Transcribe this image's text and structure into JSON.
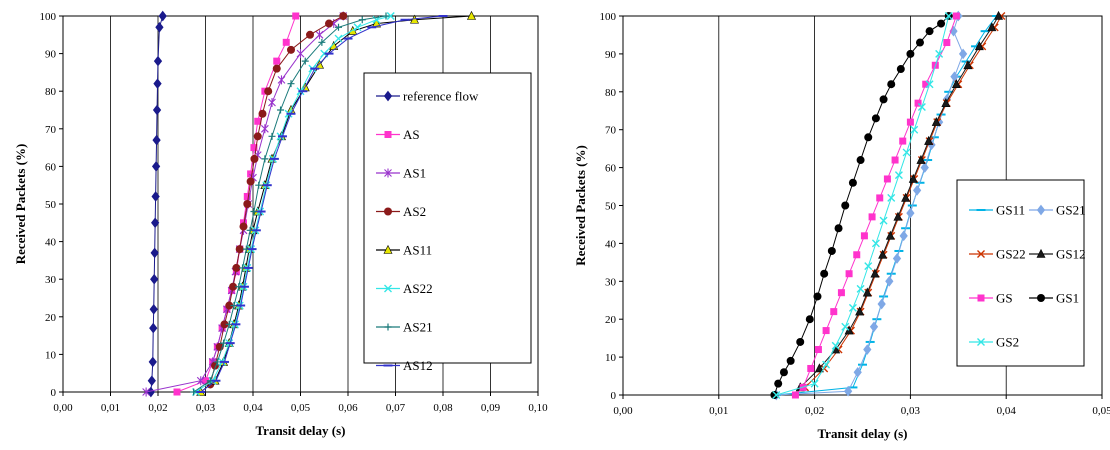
{
  "chart_data": [
    {
      "type": "line",
      "title": "",
      "xlabel": "Transit delay (s)",
      "ylabel": "Received Packets (%)",
      "xlim": [
        0,
        0.1
      ],
      "ylim": [
        0,
        100
      ],
      "xticks": [
        "0,00",
        "0,01",
        "0,02",
        "0,03",
        "0,04",
        "0,05",
        "0,06",
        "0,07",
        "0,08",
        "0,09",
        "0,10"
      ],
      "yticks": [
        "0",
        "10",
        "20",
        "30",
        "40",
        "50",
        "60",
        "70",
        "80",
        "90",
        "100"
      ],
      "grid": "vertical",
      "legend_position": "right",
      "series": [
        {
          "name": "reference flow",
          "color": "#1a1a8c",
          "marker": "diamond",
          "x": [
            0.0185,
            0.0187,
            0.0189,
            0.019,
            0.0191,
            0.0192,
            0.0193,
            0.0194,
            0.0195,
            0.0196,
            0.0197,
            0.0198,
            0.0199,
            0.02,
            0.0203,
            0.021
          ],
          "y": [
            0,
            3,
            8,
            17,
            22,
            30,
            37,
            45,
            52,
            60,
            67,
            75,
            82,
            88,
            97,
            100
          ]
        },
        {
          "name": "AS",
          "color": "#ff33cc",
          "marker": "square",
          "x": [
            0.024,
            0.03,
            0.0315,
            0.0325,
            0.0335,
            0.0345,
            0.0355,
            0.0365,
            0.0372,
            0.038,
            0.0388,
            0.0395,
            0.0402,
            0.041,
            0.0425,
            0.045,
            0.047,
            0.049
          ],
          "y": [
            0,
            3,
            8,
            12,
            17,
            22,
            27,
            32,
            38,
            45,
            52,
            58,
            65,
            72,
            80,
            88,
            93,
            100
          ]
        },
        {
          "name": "AS1",
          "color": "#9933cc",
          "marker": "star",
          "x": [
            0.0175,
            0.029,
            0.0315,
            0.0325,
            0.0335,
            0.0345,
            0.0355,
            0.0363,
            0.0372,
            0.038,
            0.039,
            0.04,
            0.041,
            0.0425,
            0.044,
            0.046,
            0.05,
            0.054,
            0.057,
            0.059
          ],
          "y": [
            0,
            3,
            8,
            12,
            17,
            22,
            27,
            32,
            38,
            43,
            50,
            57,
            63,
            70,
            77,
            83,
            90,
            95,
            98,
            100
          ]
        },
        {
          "name": "AS2",
          "color": "#8b1a1a",
          "marker": "circle",
          "x": [
            0.031,
            0.032,
            0.033,
            0.034,
            0.035,
            0.0358,
            0.0365,
            0.0372,
            0.038,
            0.0388,
            0.0395,
            0.0403,
            0.041,
            0.042,
            0.0432,
            0.045,
            0.048,
            0.052,
            0.056,
            0.059
          ],
          "y": [
            2,
            7,
            12,
            18,
            23,
            28,
            33,
            38,
            44,
            50,
            56,
            62,
            68,
            74,
            80,
            86,
            91,
            95,
            98,
            100
          ]
        },
        {
          "name": "AS11",
          "color": "#e6e600",
          "marker": "triangle",
          "x": [
            0.029,
            0.032,
            0.0338,
            0.035,
            0.036,
            0.037,
            0.0378,
            0.0385,
            0.0392,
            0.04,
            0.041,
            0.0425,
            0.044,
            0.046,
            0.048,
            0.051,
            0.054,
            0.057,
            0.061,
            0.066,
            0.074,
            0.086
          ],
          "y": [
            0,
            3,
            8,
            13,
            18,
            23,
            28,
            33,
            38,
            43,
            48,
            55,
            62,
            68,
            75,
            81,
            87,
            92,
            96,
            98,
            99,
            100
          ]
        },
        {
          "name": "AS22",
          "color": "#33e6e6",
          "marker": "x",
          "x": [
            0.028,
            0.0315,
            0.0335,
            0.035,
            0.0362,
            0.0372,
            0.038,
            0.0388,
            0.0396,
            0.0405,
            0.0415,
            0.0428,
            0.0442,
            0.0458,
            0.0475,
            0.05,
            0.0525,
            0.055,
            0.058,
            0.062,
            0.066,
            0.069
          ],
          "y": [
            0,
            3,
            8,
            13,
            18,
            23,
            28,
            33,
            38,
            43,
            48,
            55,
            62,
            68,
            74,
            80,
            86,
            90,
            94,
            97,
            99,
            100
          ]
        },
        {
          "name": "AS21",
          "color": "#1a7a7a",
          "marker": "plus",
          "x": [
            0.0275,
            0.031,
            0.0325,
            0.0338,
            0.035,
            0.036,
            0.037,
            0.0378,
            0.0386,
            0.0394,
            0.0402,
            0.0412,
            0.0425,
            0.044,
            0.0458,
            0.048,
            0.051,
            0.0545,
            0.058,
            0.063,
            0.068
          ],
          "y": [
            0,
            3,
            8,
            13,
            18,
            23,
            28,
            33,
            38,
            43,
            48,
            55,
            62,
            68,
            75,
            82,
            88,
            93,
            97,
            99,
            100
          ]
        },
        {
          "name": "AS12",
          "color": "#3333cc",
          "marker": "dash",
          "x": [
            0.029,
            0.0322,
            0.034,
            0.0352,
            0.0364,
            0.0374,
            0.0382,
            0.039,
            0.0398,
            0.0407,
            0.0417,
            0.043,
            0.0445,
            0.0462,
            0.048,
            0.0505,
            0.053,
            0.056,
            0.06,
            0.065,
            0.072,
            0.08
          ],
          "y": [
            0,
            3,
            8,
            13,
            18,
            23,
            28,
            33,
            38,
            43,
            48,
            55,
            62,
            68,
            74,
            80,
            86,
            90,
            94,
            97,
            99,
            100
          ]
        }
      ]
    },
    {
      "type": "line",
      "title": "",
      "xlabel": "Transit delay (s)",
      "ylabel": "Received Packets (%)",
      "xlim": [
        0,
        0.05
      ],
      "ylim": [
        0,
        100
      ],
      "xticks": [
        "0,00",
        "0,01",
        "0,02",
        "0,03",
        "0,04",
        "0,05"
      ],
      "yticks": [
        "0",
        "10",
        "20",
        "30",
        "40",
        "50",
        "60",
        "70",
        "80",
        "90",
        "100"
      ],
      "grid": "vertical",
      "legend_position": "right",
      "series": [
        {
          "name": "GS11",
          "color": "#00b3e6",
          "marker": "dash",
          "x": [
            0.016,
            0.024,
            0.025,
            0.0258,
            0.0265,
            0.0272,
            0.028,
            0.0288,
            0.0295,
            0.0302,
            0.031,
            0.0318,
            0.0325,
            0.0332,
            0.034,
            0.0348,
            0.0358,
            0.0368,
            0.0378,
            0.039
          ],
          "y": [
            0,
            2,
            8,
            14,
            20,
            26,
            32,
            38,
            44,
            50,
            56,
            62,
            68,
            74,
            80,
            84,
            88,
            92,
            96,
            100
          ]
        },
        {
          "name": "GS21",
          "color": "#7fa8e6",
          "marker": "diamond",
          "x": [
            0.016,
            0.0235,
            0.0245,
            0.0255,
            0.0262,
            0.027,
            0.0278,
            0.0286,
            0.0293,
            0.03,
            0.0307,
            0.0315,
            0.0322,
            0.033,
            0.0338,
            0.0346,
            0.0355,
            0.0345,
            0.035
          ],
          "y": [
            0,
            1,
            6,
            12,
            18,
            24,
            30,
            36,
            42,
            48,
            54,
            60,
            66,
            72,
            78,
            84,
            90,
            96,
            100
          ]
        },
        {
          "name": "GS22",
          "color": "#cc3300",
          "marker": "x",
          "x": [
            0.019,
            0.021,
            0.0225,
            0.0238,
            0.0248,
            0.0256,
            0.0264,
            0.0272,
            0.028,
            0.0288,
            0.0296,
            0.0304,
            0.0312,
            0.032,
            0.0328,
            0.0338,
            0.035,
            0.0362,
            0.0375,
            0.0388,
            0.0395
          ],
          "y": [
            2,
            7,
            12,
            17,
            22,
            27,
            32,
            37,
            42,
            47,
            52,
            57,
            62,
            67,
            72,
            77,
            82,
            87,
            92,
            97,
            100
          ]
        },
        {
          "name": "GS12",
          "color": "#1a1a1a",
          "marker": "triangle",
          "x": [
            0.0185,
            0.0205,
            0.0222,
            0.0236,
            0.0247,
            0.0255,
            0.0263,
            0.0271,
            0.0279,
            0.0287,
            0.0295,
            0.0303,
            0.0311,
            0.0319,
            0.0327,
            0.0337,
            0.0348,
            0.036,
            0.0372,
            0.0385,
            0.0392
          ],
          "y": [
            2,
            7,
            12,
            17,
            22,
            27,
            32,
            37,
            42,
            47,
            52,
            57,
            62,
            67,
            72,
            77,
            82,
            87,
            92,
            97,
            100
          ]
        },
        {
          "name": "GS",
          "color": "#ff33cc",
          "marker": "square",
          "x": [
            0.018,
            0.0188,
            0.0196,
            0.0204,
            0.0212,
            0.022,
            0.0228,
            0.0236,
            0.0244,
            0.0252,
            0.026,
            0.0268,
            0.0276,
            0.0284,
            0.0292,
            0.03,
            0.0308,
            0.0316,
            0.0326,
            0.0338,
            0.0348
          ],
          "y": [
            0,
            2,
            7,
            12,
            17,
            22,
            27,
            32,
            37,
            42,
            47,
            52,
            57,
            62,
            67,
            72,
            77,
            82,
            87,
            93,
            100
          ]
        },
        {
          "name": "GS1",
          "color": "#000000",
          "marker": "circle",
          "x": [
            0.0158,
            0.0162,
            0.0168,
            0.0175,
            0.0185,
            0.0195,
            0.0203,
            0.021,
            0.0218,
            0.0225,
            0.0232,
            0.024,
            0.0248,
            0.0256,
            0.0264,
            0.0272,
            0.028,
            0.029,
            0.03,
            0.031,
            0.032,
            0.0332,
            0.034
          ],
          "y": [
            0,
            3,
            6,
            9,
            14,
            20,
            26,
            32,
            38,
            44,
            50,
            56,
            62,
            68,
            73,
            78,
            82,
            86,
            90,
            93,
            96,
            98,
            100
          ]
        },
        {
          "name": "GS2",
          "color": "#33e6e6",
          "marker": "x",
          "x": [
            0.016,
            0.02,
            0.0212,
            0.0222,
            0.0232,
            0.024,
            0.0248,
            0.0256,
            0.0264,
            0.0272,
            0.028,
            0.0288,
            0.0296,
            0.0304,
            0.0312,
            0.032,
            0.033,
            0.034
          ],
          "y": [
            0,
            3,
            8,
            13,
            18,
            23,
            28,
            34,
            40,
            46,
            52,
            58,
            64,
            70,
            76,
            82,
            90,
            100
          ]
        }
      ]
    }
  ]
}
